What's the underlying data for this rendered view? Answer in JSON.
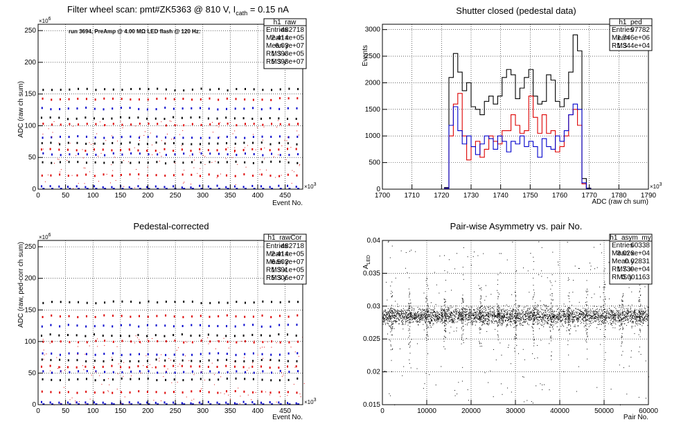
{
  "chart_data": [
    {
      "type": "scatter",
      "title": "Filter wheel scan: pmt#ZK5363 @   810 V, I",
      "title_sub": "cath",
      "title_tail": " = 0.15 nA",
      "annotation": "run 3694, PreAmp @ 4.00 MΩ LED flash @  120 Hz:",
      "xlabel": "Event No.",
      "ylabel": "ADC (raw ch sum)",
      "x_multiplier": "×10",
      "x_multiplier_exp": "3",
      "y_multiplier": "×10",
      "y_multiplier_exp": "6",
      "xlim": [
        0,
        482
      ],
      "ylim": [
        0,
        260
      ],
      "xticks": [
        0,
        50,
        100,
        150,
        200,
        250,
        300,
        350,
        400,
        450
      ],
      "yticks": [
        0,
        50,
        100,
        150,
        200,
        250
      ],
      "grid": true,
      "pattern": {
        "period": 16,
        "levels": [
          4,
          22,
          42,
          55,
          62,
          72,
          82,
          102,
          112,
          127,
          142,
          157
        ]
      },
      "series_colors": [
        "#0000cc",
        "#dd0000",
        "#000000"
      ],
      "stats": {
        "name": "h1_raw",
        "rows": [
          [
            "Entries",
            "482718"
          ],
          [
            "Mean x",
            "2.414e+05"
          ],
          [
            "Mean y",
            "6.03e+07"
          ],
          [
            "RMS x",
            "1.393e+05"
          ],
          [
            "RMS y",
            "5.398e+07"
          ]
        ]
      }
    },
    {
      "type": "line",
      "title": "Shutter closed (pedestal data)",
      "xlabel": "ADC (raw ch sum)",
      "ylabel": "Events",
      "x_multiplier": "×10",
      "x_multiplier_exp": "3",
      "xlim": [
        1700,
        1790
      ],
      "ylim": [
        0,
        3100
      ],
      "xticks": [
        1700,
        1710,
        1720,
        1730,
        1740,
        1750,
        1760,
        1770,
        1780,
        1790
      ],
      "yticks": [
        0,
        500,
        1000,
        1500,
        2000,
        2500,
        3000
      ],
      "grid": true,
      "bin_start": 1700,
      "bin_width": 1.5,
      "series": [
        {
          "color": "#000000",
          "values": [
            0,
            0,
            0,
            0,
            0,
            0,
            0,
            0,
            0,
            0,
            0,
            0,
            0,
            0,
            30,
            2100,
            2550,
            2200,
            1850,
            2000,
            1550,
            1500,
            1400,
            1650,
            1750,
            1600,
            1750,
            2100,
            2250,
            2150,
            1700,
            1900,
            2100,
            2250,
            1750,
            1600,
            1650,
            2150,
            2050,
            1650,
            1550,
            1700,
            2200,
            2900,
            2600,
            200,
            20,
            0,
            0,
            0,
            0,
            0,
            0,
            0,
            0,
            0,
            0,
            0,
            0,
            0
          ]
        },
        {
          "color": "#dd0000",
          "values": [
            0,
            0,
            0,
            0,
            0,
            0,
            0,
            0,
            0,
            0,
            0,
            0,
            0,
            0,
            15,
            1000,
            1600,
            1800,
            1000,
            550,
            800,
            900,
            600,
            750,
            1000,
            900,
            850,
            1100,
            1100,
            1400,
            1200,
            1050,
            1100,
            1750,
            1350,
            1050,
            1400,
            1050,
            1100,
            700,
            800,
            1000,
            1400,
            1500,
            1200,
            100,
            10,
            0,
            0,
            0,
            0,
            0,
            0,
            0,
            0,
            0,
            0,
            0,
            0,
            0
          ]
        },
        {
          "color": "#0000cc",
          "values": [
            0,
            0,
            0,
            0,
            0,
            0,
            0,
            0,
            0,
            0,
            0,
            0,
            0,
            0,
            15,
            1200,
            1550,
            1100,
            850,
            1000,
            800,
            650,
            850,
            1000,
            950,
            750,
            1000,
            900,
            700,
            900,
            850,
            1000,
            800,
            900,
            800,
            600,
            950,
            800,
            750,
            1000,
            900,
            1100,
            1400,
            1600,
            1500,
            120,
            10,
            0,
            0,
            0,
            0,
            0,
            0,
            0,
            0,
            0,
            0,
            0,
            0,
            0
          ]
        }
      ],
      "stats": {
        "name": "h1_ped",
        "rows": [
          [
            "Entries",
            "97782"
          ],
          [
            "Mean",
            "1.746e+06"
          ],
          [
            "RMS",
            "1.344e+04"
          ]
        ]
      }
    },
    {
      "type": "scatter",
      "title": "Pedestal-corrected",
      "xlabel": "Event No.",
      "ylabel": "ADC (raw, ped-corr ch sum)",
      "x_multiplier": "×10",
      "x_multiplier_exp": "3",
      "y_multiplier": "×10",
      "y_multiplier_exp": "6",
      "xlim": [
        0,
        482
      ],
      "ylim": [
        0,
        260
      ],
      "xticks": [
        0,
        50,
        100,
        150,
        200,
        250,
        300,
        350,
        400,
        450
      ],
      "yticks": [
        0,
        50,
        100,
        150,
        200,
        250
      ],
      "grid": true,
      "pattern": {
        "period": 16,
        "levels": [
          3,
          20,
          40,
          52,
          60,
          70,
          80,
          100,
          110,
          125,
          140,
          162
        ]
      },
      "series_colors": [
        "#0000cc",
        "#dd0000",
        "#000000"
      ],
      "stats": {
        "name": "h1_rawCor",
        "rows": [
          [
            "Entries",
            "482718"
          ],
          [
            "Mean x",
            "2.414e+05"
          ],
          [
            "Mean y",
            "6.502e+07"
          ],
          [
            "RMS x",
            "1.391e+05"
          ],
          [
            "RMS y",
            "5.306e+07"
          ]
        ]
      }
    },
    {
      "type": "scatter",
      "title": "Pair-wise Asymmetry vs. pair No.",
      "xlabel": "Pair No.",
      "ylabel": "A",
      "ylabel_sub": "LED",
      "xlim": [
        0,
        60000
      ],
      "ylim": [
        0.015,
        0.04
      ],
      "xticks": [
        0,
        10000,
        20000,
        30000,
        40000,
        50000,
        60000
      ],
      "yticks": [
        0.015,
        0.02,
        0.025,
        0.03,
        0.035,
        0.04
      ],
      "grid": true,
      "band_center": 0.0285,
      "band_halfwidth": 0.0012,
      "spike_period": 4000,
      "series_colors": [
        "#000000"
      ],
      "stats": {
        "name": "h1_asym_my",
        "rows": [
          [
            "Entries",
            "60338"
          ],
          [
            "Mean x",
            "3.026e+04"
          ],
          [
            "Mean y",
            "0.02831"
          ],
          [
            "RMS x",
            "1.739e+04"
          ],
          [
            "RMS y",
            "0.001163"
          ]
        ]
      }
    }
  ]
}
